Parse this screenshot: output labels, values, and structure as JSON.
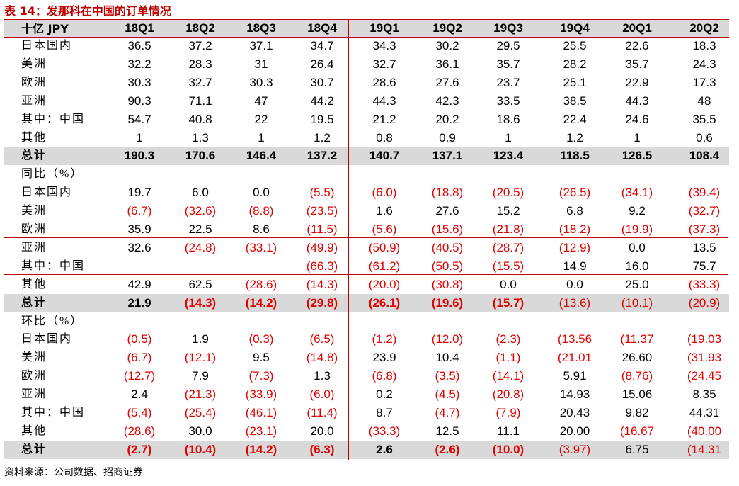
{
  "title": "表 14：发那科在中国的订单情况",
  "table": {
    "header": [
      "十亿 JPY",
      "18Q1",
      "18Q2",
      "18Q3",
      "18Q4",
      "19Q1",
      "19Q2",
      "19Q3",
      "19Q4",
      "20Q1",
      "20Q2"
    ],
    "rows": [
      {
        "label": "日本国内",
        "cells": [
          "36.5",
          "37.2",
          "37.1",
          "34.7",
          "34.3",
          "30.2",
          "29.5",
          "25.5",
          "22.6",
          "18.3"
        ]
      },
      {
        "label": "美洲",
        "cells": [
          "32.2",
          "28.3",
          "31",
          "26.4",
          "32.7",
          "36.1",
          "35.7",
          "28.2",
          "35.7",
          "24.3"
        ]
      },
      {
        "label": "欧洲",
        "cells": [
          "30.3",
          "32.7",
          "30.3",
          "30.7",
          "28.6",
          "27.6",
          "23.7",
          "25.1",
          "22.9",
          "17.3"
        ]
      },
      {
        "label": "亚洲",
        "cells": [
          "90.3",
          "71.1",
          "47",
          "44.2",
          "44.3",
          "42.3",
          "33.5",
          "38.5",
          "44.3",
          "48"
        ]
      },
      {
        "label": "其中：中国",
        "cells": [
          "54.7",
          "40.8",
          "22",
          "19.5",
          "21.2",
          "20.2",
          "18.6",
          "22.4",
          "24.6",
          "35.5"
        ]
      },
      {
        "label": "其他",
        "cells": [
          "1",
          "1.3",
          "1",
          "1.2",
          "0.8",
          "0.9",
          "1",
          "1.2",
          "1",
          "0.6"
        ]
      },
      {
        "label": "总计",
        "cells": [
          "190.3",
          "170.6",
          "146.4",
          "137.2",
          "140.7",
          "137.1",
          "123.4",
          "118.5",
          "126.5",
          "108.4"
        ]
      },
      {
        "label": "同比（%）"
      },
      {
        "label": "日本国内",
        "cells": [
          "19.7",
          "6.0",
          "0.0",
          "(5.5)",
          "(6.0)",
          "(18.8)",
          "(20.5)",
          "(26.5)",
          "(34.1)",
          "(39.4)"
        ]
      },
      {
        "label": "美洲",
        "cells": [
          "(6.7)",
          "(32.6)",
          "(8.8)",
          "(23.5)",
          "1.6",
          "27.6",
          "15.2",
          "6.8",
          "9.2",
          "(32.7)"
        ]
      },
      {
        "label": "欧洲",
        "cells": [
          "35.9",
          "22.5",
          "8.6",
          "(11.5)",
          "(5.6)",
          "(15.6)",
          "(21.8)",
          "(18.2)",
          "(19.9)",
          "(37.3)"
        ]
      },
      {
        "label": "亚洲",
        "cells": [
          "32.6",
          "(24.8)",
          "(33.1)",
          "(49.9)",
          "(50.9)",
          "(40.5)",
          "(28.7)",
          "(12.9)",
          "0.0",
          "13.5"
        ]
      },
      {
        "label": "其中：中国",
        "cells": [
          null,
          null,
          null,
          "(66.3)",
          "(61.2)",
          "(50.5)",
          "(15.5)",
          "14.9",
          "16.0",
          "75.7"
        ]
      },
      {
        "label": "其他",
        "cells": [
          "42.9",
          "62.5",
          "(28.6)",
          "(14.3)",
          "(20.0)",
          "(30.8)",
          "0.0",
          "0.0",
          "25.0",
          "(33.3)"
        ]
      },
      {
        "label": "总计",
        "cells": [
          "21.9",
          "(14.3)",
          "(14.2)",
          "(29.8)",
          "(26.1)",
          "(19.6)",
          "(15.7)",
          "(13.6)",
          "(10.1)",
          "(20.9)"
        ]
      },
      {
        "label": "环比（%）"
      },
      {
        "label": "日本国内",
        "cells": [
          "(0.5)",
          "1.9",
          "(0.3)",
          "(6.5)",
          "(1.2)",
          "(12.0)",
          "(2.3)",
          "(13.56",
          "(11.37",
          "(19.03"
        ]
      },
      {
        "label": "美洲",
        "cells": [
          "(6.7)",
          "(12.1)",
          "9.5",
          "(14.8)",
          "23.9",
          "10.4",
          "(1.1)",
          "(21.01",
          "26.60",
          "(31.93"
        ]
      },
      {
        "label": "欧洲",
        "cells": [
          "(12.7)",
          "7.9",
          "(7.3)",
          "1.3",
          "(6.8)",
          "(3.5)",
          "(14.1)",
          "5.91",
          "(8.76)",
          "(24.45"
        ]
      },
      {
        "label": "亚洲",
        "cells": [
          "2.4",
          "(21.3)",
          "(33.9)",
          "(6.0)",
          "0.2",
          "(4.5)",
          "(20.8)",
          "14.93",
          "15.06",
          "8.35"
        ]
      },
      {
        "label": "其中：中国",
        "cells": [
          "(5.4)",
          "(25.4)",
          "(46.1)",
          "(11.4)",
          "8.7",
          "(4.7)",
          "(7.9)",
          "20.43",
          "9.82",
          "44.31"
        ]
      },
      {
        "label": "其他",
        "cells": [
          "(28.6)",
          "30.0",
          "(23.1)",
          "20.0",
          "(33.3)",
          "12.5",
          "11.1",
          "20.00",
          "(16.67",
          "(40.00"
        ]
      },
      {
        "label": "总计",
        "cells": [
          "(2.7)",
          "(10.4)",
          "(14.2)",
          "(6.3)",
          "2.6",
          "(2.6)",
          "(10.0)",
          "(3.97)",
          "6.75",
          "(14.31"
        ]
      }
    ]
  },
  "source": "资料来源：公司数据、招商证券"
}
